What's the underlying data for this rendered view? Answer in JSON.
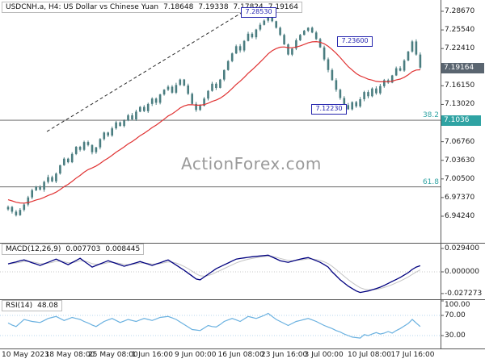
{
  "window": {
    "title": "USDCNH.a, H4: US Dollar vs Chinese Yuan",
    "ohlc": {
      "open": "7.18648",
      "high": "7.19338",
      "low": "7.17824",
      "close": "7.19164"
    }
  },
  "watermark": "ActionForex.com",
  "colors": {
    "background": "#ffffff",
    "candle": "#4a7d80",
    "ma_line": "#e03232",
    "trendline": "#2a2a2a",
    "separator": "#555555",
    "macd_line": "#00007f",
    "macd_signal": "#c4c4c4",
    "rsi_line": "#6ab1e0",
    "rsi_guide": "#9ec9e6",
    "accent_teal": "#2fa3a3",
    "current_price_bg": "#5a6570",
    "level_box_border": "#2525ad",
    "level_box_text": "#1e1eae",
    "watermark_color": "#9a9a9a"
  },
  "price_axis": {
    "ticks": [
      {
        "label": "7.28670",
        "value": 7.2867
      },
      {
        "label": "7.25540",
        "value": 7.2554
      },
      {
        "label": "7.22410",
        "value": 7.2241
      },
      {
        "label": "7.16150",
        "value": 7.1615
      },
      {
        "label": "7.13020",
        "value": 7.1302
      },
      {
        "label": "7.06760",
        "value": 7.0676
      },
      {
        "label": "7.03630",
        "value": 7.0363
      },
      {
        "label": "7.00500",
        "value": 7.005
      },
      {
        "label": "6.97370",
        "value": 6.9737
      },
      {
        "label": "6.94240",
        "value": 6.9424
      }
    ],
    "current": {
      "label": "7.19164",
      "value": 7.19164
    },
    "fib_382": {
      "pct_label": "38.2",
      "price_label": "7.1036",
      "value": 7.1036
    },
    "fib_618": {
      "pct_label": "61.8",
      "value": 6.9916
    }
  },
  "levels": [
    {
      "label": "7.28530",
      "value": 7.2853,
      "x": 298
    },
    {
      "label": "7.23600",
      "value": 7.236,
      "x": 417
    },
    {
      "label": "7.12230",
      "value": 7.1223,
      "x": 385
    }
  ],
  "time_axis": {
    "labels": [
      "10 May 2023",
      "18 May 08:00",
      "25 May 08:00",
      "1 Jun 16:00",
      "9 Jun 00:00",
      "16 Jun 08:00",
      "23 Jun 16:00",
      "3 Jul 00:00",
      "10 Jul 08:00",
      "17 Jul 16:00"
    ]
  },
  "macd_panel": {
    "label": "MACD(12,26,9)",
    "value_main": "0.007703",
    "value_signal": "0.008445",
    "ticks": [
      {
        "label": "0.029400",
        "value": 0.0294
      },
      {
        "label": "0.000000",
        "value": 0
      },
      {
        "label": "-0.027273",
        "value": -0.027273
      }
    ]
  },
  "rsi_panel": {
    "label": "RSI(14)",
    "value": "48.08",
    "ticks": [
      {
        "label": "100.00",
        "value": 100
      },
      {
        "label": "70.00",
        "value": 70
      },
      {
        "label": "30.00",
        "value": 30
      }
    ],
    "guides": [
      70,
      30
    ]
  },
  "chart_data": [
    {
      "id": "price",
      "type": "candlestick",
      "title": "USDCNH.a H4 US Dollar vs Chinese Yuan",
      "ylim": [
        6.895,
        7.3
      ],
      "current_ohlc": {
        "open": 7.18648,
        "high": 7.19338,
        "low": 7.17824,
        "close": 7.19164
      },
      "closes": [
        6.958,
        6.95,
        6.944,
        6.953,
        6.962,
        6.974,
        6.986,
        6.992,
        6.987,
        7.0,
        7.008,
        7.001,
        7.014,
        7.028,
        7.039,
        7.033,
        7.047,
        7.059,
        7.054,
        7.067,
        7.062,
        7.05,
        7.058,
        7.072,
        7.083,
        7.078,
        7.09,
        7.1,
        7.094,
        7.103,
        7.112,
        7.105,
        7.118,
        7.126,
        7.119,
        7.131,
        7.14,
        7.133,
        7.147,
        7.155,
        7.16,
        7.15,
        7.163,
        7.172,
        7.162,
        7.148,
        7.131,
        7.121,
        7.128,
        7.14,
        7.153,
        7.165,
        7.158,
        7.172,
        7.188,
        7.203,
        7.216,
        7.228,
        7.221,
        7.237,
        7.249,
        7.243,
        7.256,
        7.264,
        7.271,
        7.284,
        7.27,
        7.259,
        7.247,
        7.231,
        7.214,
        7.224,
        7.238,
        7.247,
        7.254,
        7.259,
        7.251,
        7.24,
        7.226,
        7.206,
        7.188,
        7.171,
        7.155,
        7.141,
        7.129,
        7.122,
        7.134,
        7.127,
        7.139,
        7.151,
        7.144,
        7.157,
        7.149,
        7.161,
        7.171,
        7.167,
        7.179,
        7.191,
        7.187,
        7.204,
        7.219,
        7.236,
        7.214,
        7.192
      ],
      "moving_average": {
        "kind": "ema",
        "period": 20
      },
      "key_levels": [
        7.2853,
        7.236,
        7.1223
      ],
      "fib_levels": {
        "38.2": 7.1036,
        "61.8": 6.9916
      },
      "trendline": {
        "from": {
          "index": 9.7,
          "price": 7.0847
        },
        "to": {
          "index": 61.6,
          "price": 7.2975
        },
        "style": "dashed"
      }
    },
    {
      "id": "macd",
      "type": "line",
      "title": "MACD(12,26,9)",
      "ylim": [
        -0.027273,
        0.0294
      ],
      "values": [
        0.01,
        0.0113,
        0.0125,
        0.014,
        0.015,
        0.0133,
        0.0115,
        0.0098,
        0.008,
        0.01,
        0.012,
        0.014,
        0.016,
        0.0137,
        0.0113,
        0.009,
        0.0117,
        0.0143,
        0.017,
        0.0133,
        0.0097,
        0.006,
        0.008,
        0.01,
        0.012,
        0.014,
        0.0123,
        0.0105,
        0.0088,
        0.007,
        0.0085,
        0.01,
        0.0115,
        0.013,
        0.0113,
        0.0097,
        0.008,
        0.0098,
        0.0115,
        0.0133,
        0.015,
        0.0118,
        0.0085,
        0.0053,
        0.002,
        -0.0017,
        -0.0053,
        -0.009,
        -0.01,
        -0.0065,
        -0.003,
        0.0005,
        0.004,
        0.0064,
        0.0088,
        0.0112,
        0.0136,
        0.016,
        0.0168,
        0.0175,
        0.0183,
        0.019,
        0.0195,
        0.02,
        0.0205,
        0.021,
        0.0187,
        0.0163,
        0.014,
        0.013,
        0.012,
        0.0133,
        0.0147,
        0.016,
        0.017,
        0.018,
        0.016,
        0.014,
        0.012,
        0.009,
        0.006,
        0.0,
        -0.005,
        -0.01,
        -0.014,
        -0.018,
        -0.021,
        -0.024,
        -0.026,
        -0.025,
        -0.024,
        -0.0225,
        -0.021,
        -0.0193,
        -0.017,
        -0.0145,
        -0.012,
        -0.0095,
        -0.007,
        -0.004,
        -0.001,
        0.003,
        0.006,
        0.0077
      ],
      "signal_period": 5,
      "current_main": 0.007703,
      "current_signal": 0.008445
    },
    {
      "id": "rsi",
      "type": "line",
      "title": "RSI(14)",
      "ylim": [
        0,
        100
      ],
      "values": [
        55,
        51,
        48,
        55,
        62,
        60,
        58,
        57,
        56,
        60,
        64,
        66,
        68,
        64,
        60,
        63,
        66,
        64,
        62,
        58,
        55,
        51,
        48,
        53,
        58,
        61,
        64,
        60,
        56,
        59,
        62,
        60,
        58,
        61,
        64,
        62,
        60,
        63,
        66,
        67,
        68,
        65,
        62,
        57,
        52,
        47,
        42,
        41,
        40,
        45,
        50,
        48,
        47,
        52,
        58,
        61,
        64,
        61,
        58,
        63,
        68,
        66,
        64,
        67,
        70,
        74,
        68,
        62,
        58,
        54,
        50,
        54,
        58,
        60,
        62,
        64,
        61,
        58,
        54,
        50,
        47,
        44,
        40,
        37,
        33,
        30,
        27,
        26,
        25,
        32,
        30,
        33,
        36,
        33,
        35,
        38,
        35,
        40,
        44,
        49,
        54,
        62,
        55,
        48
      ],
      "current": 48.08,
      "guides": [
        70,
        30
      ]
    }
  ]
}
